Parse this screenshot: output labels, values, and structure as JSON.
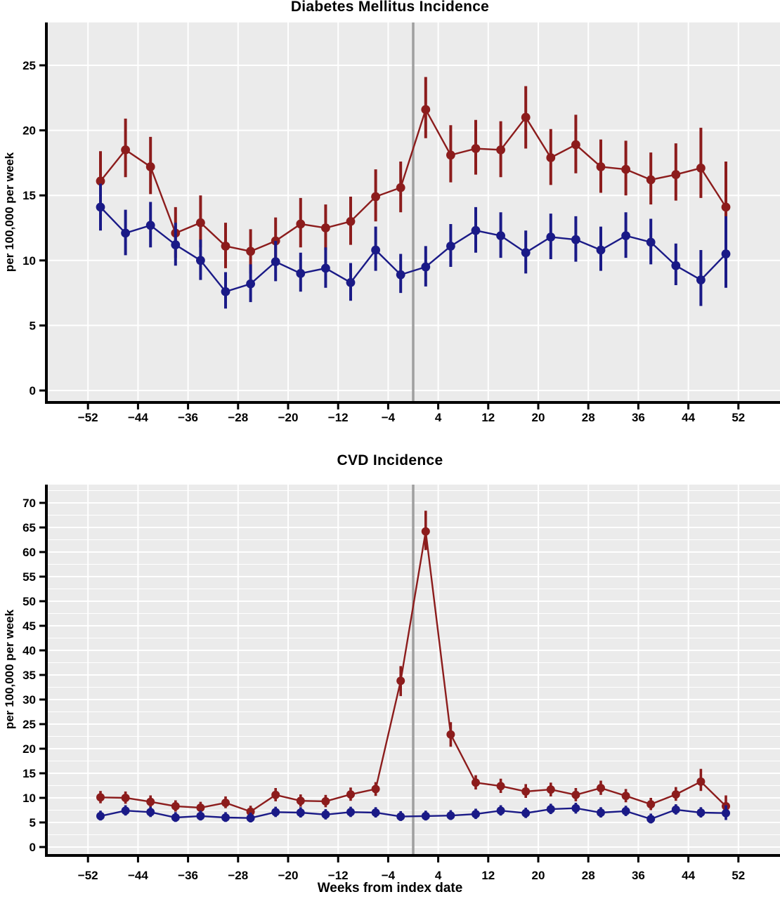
{
  "xlabel_bottom": "Weeks from index date",
  "chart_data": [
    {
      "type": "line",
      "title": "Diabetes Mellitus Incidence",
      "ylabel": "per 100,000 per week",
      "xlabel": "",
      "ylim": [
        0,
        28
      ],
      "xlim": [
        -58,
        58
      ],
      "grid": "white major gridlines on gray panel",
      "legend_position": "none",
      "refline_week": 0,
      "yticks": [
        0,
        5,
        10,
        15,
        20,
        25
      ],
      "ytick_labels": [
        "0",
        "5",
        "10",
        "15",
        "20",
        "25"
      ],
      "xticks": [
        -52,
        -44,
        -36,
        -28,
        -20,
        -12,
        -4,
        4,
        12,
        20,
        28,
        36,
        44,
        52
      ],
      "xtick_labels": [
        "−52",
        "−44",
        "−36",
        "−28",
        "−20",
        "−12",
        "−4",
        "4",
        "12",
        "20",
        "28",
        "36",
        "44",
        "52"
      ],
      "weeks": [
        -50,
        -46,
        -42,
        -38,
        -34,
        -30,
        -26,
        -22,
        -18,
        -14,
        -10,
        -6,
        -2,
        2,
        6,
        10,
        14,
        18,
        22,
        26,
        30,
        34,
        38,
        42,
        46,
        50
      ],
      "style": {
        "panel_bg": "#ebebeb",
        "gridline_color": "#ffffff",
        "refline_color": "#a0a0a0",
        "axis_color": "#000000",
        "y_minor_step": 0,
        "y_minor_max": 0,
        "errbar_width": 4,
        "point_radius": 6.4
      },
      "series": [
        {
          "name": "red",
          "color": "#8c1c1c",
          "values": [
            16.1,
            18.5,
            17.2,
            12.1,
            12.9,
            11.1,
            10.7,
            11.5,
            12.8,
            12.5,
            13.0,
            14.9,
            15.6,
            21.6,
            18.1,
            18.6,
            18.5,
            21.0,
            17.9,
            18.9,
            17.2,
            17.0,
            16.2,
            16.6,
            17.1,
            14.1
          ],
          "ci_low": [
            13.9,
            16.4,
            15.1,
            10.2,
            11.0,
            9.4,
            9.0,
            9.8,
            11.0,
            10.8,
            11.2,
            13.0,
            13.7,
            19.4,
            16.0,
            16.6,
            16.4,
            18.6,
            15.8,
            16.7,
            15.2,
            15.0,
            14.3,
            14.6,
            14.8,
            10.6
          ],
          "ci_high": [
            18.4,
            20.9,
            19.5,
            14.1,
            15.0,
            12.9,
            12.4,
            13.3,
            14.8,
            14.3,
            14.9,
            17.0,
            17.6,
            24.1,
            20.4,
            20.8,
            20.7,
            23.4,
            20.1,
            21.2,
            19.3,
            19.2,
            18.3,
            19.0,
            20.2,
            17.6
          ]
        },
        {
          "name": "blue",
          "color": "#1a1a87",
          "values": [
            14.1,
            12.1,
            12.7,
            11.2,
            10.0,
            7.6,
            8.2,
            9.9,
            9.0,
            9.4,
            8.3,
            10.8,
            8.9,
            9.5,
            11.1,
            12.3,
            11.9,
            10.6,
            11.8,
            11.6,
            10.8,
            11.9,
            11.4,
            9.6,
            8.5,
            10.5
          ],
          "ci_low": [
            12.3,
            10.4,
            11.0,
            9.6,
            8.5,
            6.3,
            6.8,
            8.4,
            7.6,
            7.9,
            6.9,
            9.2,
            7.5,
            8.0,
            9.5,
            10.6,
            10.2,
            9.0,
            10.1,
            9.9,
            9.2,
            10.2,
            9.7,
            8.1,
            6.5,
            7.9
          ],
          "ci_high": [
            15.9,
            13.9,
            14.5,
            12.9,
            11.6,
            9.1,
            9.7,
            11.5,
            10.6,
            11.0,
            9.8,
            12.6,
            10.5,
            11.1,
            12.8,
            14.1,
            13.7,
            12.3,
            13.6,
            13.4,
            12.6,
            13.7,
            13.2,
            11.3,
            10.8,
            13.4
          ]
        }
      ]
    },
    {
      "type": "line",
      "title": "CVD Incidence",
      "ylabel": "per 100,000 per week",
      "xlabel": "Weeks from index date",
      "ylim": [
        0,
        73
      ],
      "xlim": [
        -58,
        58
      ],
      "grid": "white major+minor gridlines on gray panel",
      "legend_position": "none",
      "refline_week": 0,
      "yticks": [
        0,
        5,
        10,
        15,
        20,
        25,
        30,
        35,
        40,
        45,
        50,
        55,
        60,
        65,
        70
      ],
      "ytick_labels": [
        "0",
        "5",
        "10",
        "15",
        "20",
        "25",
        "30",
        "35",
        "40",
        "45",
        "50",
        "55",
        "60",
        "65",
        "70"
      ],
      "xticks": [
        -52,
        -44,
        -36,
        -28,
        -20,
        -12,
        -4,
        4,
        12,
        20,
        28,
        36,
        44,
        52
      ],
      "xtick_labels": [
        "−52",
        "−44",
        "−36",
        "−28",
        "−20",
        "−12",
        "−4",
        "4",
        "12",
        "20",
        "28",
        "36",
        "44",
        "52"
      ],
      "weeks": [
        -50,
        -46,
        -42,
        -38,
        -34,
        -30,
        -26,
        -22,
        -18,
        -14,
        -10,
        -6,
        -2,
        2,
        6,
        10,
        14,
        18,
        22,
        26,
        30,
        34,
        38,
        42,
        46,
        50
      ],
      "style": {
        "panel_bg": "#ebebeb",
        "gridline_color": "#ffffff",
        "refline_color": "#a0a0a0",
        "axis_color": "#000000",
        "y_minor_step": 2.5,
        "y_minor_max": 72.5,
        "errbar_width": 3.6,
        "point_radius": 6.0
      },
      "series": [
        {
          "name": "red",
          "color": "#8c1c1c",
          "values": [
            10.1,
            10.0,
            9.2,
            8.3,
            8.0,
            9.0,
            7.2,
            10.6,
            9.4,
            9.3,
            10.7,
            11.8,
            33.8,
            64.2,
            22.9,
            13.1,
            12.4,
            11.3,
            11.7,
            10.6,
            12.0,
            10.4,
            8.7,
            10.7,
            13.3,
            8.3
          ],
          "ci_low": [
            8.9,
            8.8,
            8.1,
            7.2,
            6.9,
            7.9,
            6.2,
            9.3,
            8.2,
            8.1,
            9.4,
            10.4,
            30.7,
            60.4,
            20.4,
            11.7,
            11.0,
            10.0,
            10.3,
            9.3,
            10.6,
            9.1,
            7.5,
            9.4,
            11.4,
            6.5
          ],
          "ci_high": [
            11.4,
            11.3,
            10.5,
            9.5,
            9.2,
            10.3,
            8.4,
            12.0,
            10.7,
            10.6,
            12.1,
            13.2,
            36.8,
            68.4,
            25.4,
            14.6,
            13.9,
            12.8,
            13.1,
            12.0,
            13.5,
            11.8,
            10.0,
            12.2,
            15.9,
            10.5
          ]
        },
        {
          "name": "blue",
          "color": "#1a1a87",
          "values": [
            6.3,
            7.4,
            7.1,
            6.0,
            6.3,
            6.0,
            5.9,
            7.1,
            7.0,
            6.6,
            7.1,
            7.0,
            6.2,
            6.3,
            6.4,
            6.7,
            7.4,
            6.9,
            7.7,
            7.9,
            7.0,
            7.3,
            5.7,
            7.6,
            7.0,
            6.9
          ],
          "ci_low": [
            5.4,
            6.4,
            6.1,
            5.1,
            5.4,
            5.1,
            5.0,
            6.1,
            6.0,
            5.6,
            6.1,
            6.0,
            5.3,
            5.4,
            5.5,
            5.7,
            6.4,
            5.9,
            6.7,
            6.8,
            6.0,
            6.3,
            4.8,
            6.6,
            6.0,
            5.5
          ],
          "ci_high": [
            7.4,
            8.5,
            8.2,
            7.1,
            7.4,
            7.1,
            7.0,
            8.2,
            8.1,
            7.7,
            8.2,
            8.1,
            7.3,
            7.4,
            7.5,
            7.8,
            8.5,
            8.0,
            8.8,
            9.0,
            8.1,
            8.4,
            6.8,
            8.7,
            8.1,
            8.5
          ]
        }
      ]
    }
  ]
}
